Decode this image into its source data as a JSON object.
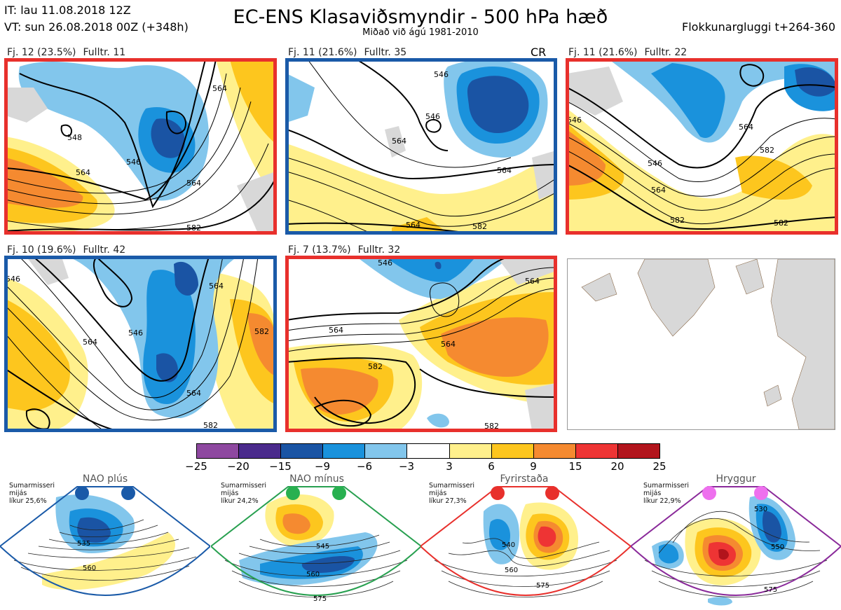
{
  "header": {
    "initial_time": "IT: lau 11.08.2018 12Z",
    "valid_time": "VT: sun 26.08.2018 00Z  (+348h)",
    "title": "EC-ENS Klasaviðsmyndir - 500 hPa hæð",
    "subtitle": "Miðað við ágú 1981-2010",
    "window": "Flokkunargluggi t+264-360"
  },
  "clusters": [
    {
      "label": "Fj. 12 (23.5%)",
      "fulltr": "Fulltr. 11",
      "frame_color": "#e8302c",
      "contour_labels": [
        "548",
        "546",
        "564",
        "564",
        "564",
        "582"
      ],
      "extra_tag": ""
    },
    {
      "label": "Fj. 11 (21.6%)",
      "fulltr": "Fulltr. 35",
      "frame_color": "#1a5aa8",
      "contour_labels": [
        "546",
        "546",
        "564",
        "564",
        "564",
        "582"
      ],
      "extra_tag": "CR"
    },
    {
      "label": "Fj. 11 (21.6%)",
      "fulltr": "Fulltr. 22",
      "frame_color": "#e8302c",
      "contour_labels": [
        "546",
        "546",
        "564",
        "564",
        "582",
        "582",
        "582"
      ],
      "extra_tag": ""
    },
    {
      "label": "Fj. 10 (19.6%)",
      "fulltr": "Fulltr. 42",
      "frame_color": "#1a5aa8",
      "contour_labels": [
        "546",
        "546",
        "564",
        "564",
        "564",
        "582",
        "582"
      ],
      "extra_tag": ""
    },
    {
      "label": "Fj. 7 (13.7%)",
      "fulltr": "Fulltr. 32",
      "frame_color": "#e8302c",
      "contour_labels": [
        "546",
        "564",
        "564",
        "564",
        "582",
        "582"
      ],
      "extra_tag": ""
    }
  ],
  "colorbar": {
    "ticks": [
      "−25",
      "−20",
      "−15",
      "−9",
      "−6",
      "−3",
      "3",
      "6",
      "9",
      "15",
      "20",
      "25"
    ],
    "colors": [
      "#8e48a0",
      "#4a2a8c",
      "#1a54a4",
      "#1a92dc",
      "#82c6ec",
      "#ffffff",
      "#fff08c",
      "#fdc61e",
      "#f58a30",
      "#ee3434",
      "#b2141c"
    ]
  },
  "regimes": [
    {
      "title": "NAO plús",
      "note": [
        "Sumarmisseri",
        "mijás",
        "líkur 25,6%"
      ],
      "color": "#1a5aa8",
      "dot_color": "#1a5aa8",
      "contours": [
        "535",
        "560"
      ]
    },
    {
      "title": "NAO mínus",
      "note": [
        "Sumarmisseri",
        "mijás",
        "líkur 24,2%"
      ],
      "color": "#28a050",
      "dot_color": "#28b050",
      "contours": [
        "545",
        "560",
        "575"
      ]
    },
    {
      "title": "Fyrirstaða",
      "note": [
        "Sumarmisseri",
        "mijás",
        "líkur 27,3%"
      ],
      "color": "#e8302c",
      "dot_color": "#e8302c",
      "contours": [
        "540",
        "560",
        "575"
      ]
    },
    {
      "title": "Hryggur",
      "note": [
        "Sumarmisseri",
        "mijás",
        "líkur 22,9%"
      ],
      "color": "#8a2a9a",
      "dot_color": "#ee70ee",
      "contours": [
        "530",
        "550",
        "575"
      ]
    }
  ]
}
